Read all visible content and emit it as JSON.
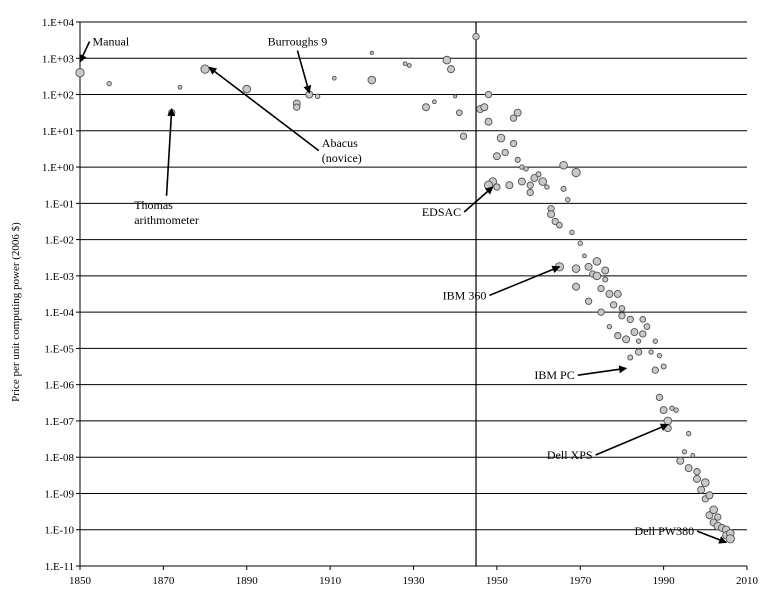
{
  "chart_data": {
    "type": "scatter",
    "title": "",
    "xlabel": "",
    "ylabel": "Price per unit computing power (2006 $)",
    "y_scale": "log",
    "xlim": [
      1850,
      2010
    ],
    "ylim_exp": [
      -11,
      4
    ],
    "x_ticks": [
      "1850",
      "1870",
      "1890",
      "1910",
      "1930",
      "1950",
      "1970",
      "1990",
      "2010"
    ],
    "y_ticks": [
      "1.E-11",
      "1.E-10",
      "1.E-09",
      "1.E-08",
      "1.E-07",
      "1.E-06",
      "1.E-05",
      "1.E-04",
      "1.E-03",
      "1.E-02",
      "1.E-01",
      "1.E+00",
      "1.E+01",
      "1.E+02",
      "1.E+03",
      "1.E+04"
    ],
    "grid": "horizontal",
    "reference_line_year": 1945,
    "colors": {
      "marker_fill": "#c8c8c8",
      "marker_stroke": "#505050",
      "grid": "#000000"
    },
    "points": [
      [
        1850,
        2.6,
        1.3
      ],
      [
        1857,
        2.3,
        0.7
      ],
      [
        1872,
        1.5,
        1.0
      ],
      [
        1874,
        2.2,
        0.6
      ],
      [
        1880,
        2.7,
        1.3
      ],
      [
        1890,
        2.15,
        1.2
      ],
      [
        1902,
        1.75,
        1.1
      ],
      [
        1902,
        1.65,
        1.0
      ],
      [
        1905,
        2.0,
        1.1
      ],
      [
        1907,
        1.95,
        0.7
      ],
      [
        1911,
        2.45,
        0.6
      ],
      [
        1920,
        3.15,
        0.5
      ],
      [
        1920,
        2.4,
        1.2
      ],
      [
        1928,
        2.85,
        0.6
      ],
      [
        1929,
        2.8,
        0.6
      ],
      [
        1933,
        1.65,
        1.1
      ],
      [
        1935,
        1.8,
        0.6
      ],
      [
        1938,
        2.95,
        1.2
      ],
      [
        1939,
        2.7,
        1.1
      ],
      [
        1940,
        1.95,
        0.5
      ],
      [
        1941,
        1.5,
        0.9
      ],
      [
        1942,
        0.85,
        1.0
      ],
      [
        1945,
        3.6,
        1.0
      ],
      [
        1946,
        1.6,
        1.1
      ],
      [
        1947,
        1.65,
        1.1
      ],
      [
        1948,
        2.0,
        1.0
      ],
      [
        1948,
        1.25,
        1.1
      ],
      [
        1949,
        -0.4,
        1.2
      ],
      [
        1950,
        -0.55,
        1.0
      ],
      [
        1950,
        0.3,
        1.1
      ],
      [
        1951,
        0.8,
        1.2
      ],
      [
        1952,
        0.4,
        1.0
      ],
      [
        1953,
        -0.5,
        1.1
      ],
      [
        1954,
        0.65,
        1.0
      ],
      [
        1954,
        1.35,
        1.0
      ],
      [
        1955,
        1.5,
        1.1
      ],
      [
        1955,
        0.2,
        0.8
      ],
      [
        1956,
        -0.4,
        1.1
      ],
      [
        1956,
        0.0,
        0.7
      ],
      [
        1957,
        -0.05,
        0.7
      ],
      [
        1958,
        -0.5,
        1.0
      ],
      [
        1958,
        -0.7,
        1.0
      ],
      [
        1959,
        -0.3,
        1.1
      ],
      [
        1960,
        -0.2,
        0.8
      ],
      [
        1961,
        -0.4,
        1.2
      ],
      [
        1962,
        -0.55,
        0.7
      ],
      [
        1963,
        -1.15,
        1.0
      ],
      [
        1963,
        -1.3,
        1.1
      ],
      [
        1964,
        -1.5,
        1.0
      ],
      [
        1965,
        -1.6,
        0.9
      ],
      [
        1966,
        0.05,
        1.2
      ],
      [
        1966,
        -0.6,
        0.8
      ],
      [
        1967,
        -0.9,
        0.7
      ],
      [
        1968,
        -1.8,
        0.7
      ],
      [
        1969,
        -2.8,
        1.2
      ],
      [
        1969,
        -3.3,
        1.1
      ],
      [
        1970,
        -2.1,
        0.7
      ],
      [
        1971,
        -2.45,
        0.6
      ],
      [
        1972,
        -2.75,
        1.1
      ],
      [
        1972,
        -3.7,
        1.0
      ],
      [
        1973,
        -2.95,
        1.0
      ],
      [
        1974,
        -2.6,
        1.2
      ],
      [
        1974,
        -3.0,
        1.2
      ],
      [
        1975,
        -3.35,
        1.0
      ],
      [
        1975,
        -4.0,
        1.0
      ],
      [
        1976,
        -2.85,
        1.1
      ],
      [
        1976,
        -3.1,
        0.8
      ],
      [
        1977,
        -4.4,
        0.7
      ],
      [
        1977,
        -3.5,
        1.1
      ],
      [
        1978,
        -3.8,
        1.0
      ],
      [
        1979,
        -3.5,
        1.1
      ],
      [
        1979,
        -4.65,
        1.0
      ],
      [
        1980,
        -4.1,
        1.0
      ],
      [
        1980,
        -3.9,
        0.9
      ],
      [
        1981,
        -4.75,
        1.1
      ],
      [
        1982,
        -4.2,
        1.0
      ],
      [
        1982,
        -5.25,
        0.8
      ],
      [
        1983,
        -4.55,
        1.1
      ],
      [
        1984,
        -5.1,
        1.0
      ],
      [
        1984,
        -4.8,
        0.7
      ],
      [
        1985,
        -4.2,
        0.9
      ],
      [
        1985,
        -4.6,
        1.0
      ],
      [
        1986,
        -4.4,
        0.9
      ],
      [
        1987,
        -5.1,
        0.7
      ],
      [
        1988,
        -4.8,
        0.7
      ],
      [
        1988,
        -5.6,
        1.0
      ],
      [
        1989,
        -5.2,
        0.7
      ],
      [
        1989,
        -6.35,
        1.0
      ],
      [
        1990,
        -6.7,
        1.1
      ],
      [
        1990,
        -5.5,
        0.8
      ],
      [
        1991,
        -7.0,
        1.2
      ],
      [
        1991,
        -7.2,
        1.1
      ],
      [
        1992,
        -6.65,
        0.7
      ],
      [
        1993,
        -6.7,
        0.7
      ],
      [
        1994,
        -8.1,
        1.1
      ],
      [
        1995,
        -7.85,
        0.7
      ],
      [
        1996,
        -8.3,
        1.1
      ],
      [
        1996,
        -7.35,
        0.7
      ],
      [
        1997,
        -7.95,
        0.6
      ],
      [
        1998,
        -8.4,
        1.0
      ],
      [
        1998,
        -8.6,
        1.1
      ],
      [
        1999,
        -8.9,
        1.1
      ],
      [
        2000,
        -8.7,
        1.2
      ],
      [
        2000,
        -9.15,
        1.0
      ],
      [
        2001,
        -9.05,
        1.1
      ],
      [
        2001,
        -9.6,
        1.1
      ],
      [
        2002,
        -9.45,
        1.2
      ],
      [
        2002,
        -9.8,
        1.1
      ],
      [
        2003,
        -9.65,
        1.0
      ],
      [
        2003,
        -9.9,
        1.2
      ],
      [
        2004,
        -9.95,
        1.1
      ],
      [
        2005,
        -10.0,
        1.2
      ],
      [
        2005,
        -10.15,
        1.1
      ],
      [
        2006,
        -10.1,
        1.2
      ],
      [
        2006,
        -10.25,
        1.3
      ],
      [
        1969,
        -0.15,
        1.3
      ],
      [
        1948,
        -0.5,
        1.3
      ],
      [
        1965,
        -2.75,
        1.3
      ]
    ],
    "annotations": [
      {
        "lines": [
          "Manual"
        ],
        "text_year": 1853,
        "text_exp": 3.35,
        "arrow_to_year": 1850,
        "arrow_to_exp": 2.9
      },
      {
        "lines": [
          "Burroughs 9"
        ],
        "text_year": 1895,
        "text_exp": 3.35,
        "arrow_to_year": 1905,
        "arrow_to_exp": 2.05
      },
      {
        "lines": [
          "Abacus",
          "(novice)"
        ],
        "text_year": 1908,
        "text_exp": 0.55,
        "arrow_to_year": 1881,
        "arrow_to_exp": 2.75
      },
      {
        "lines": [
          "Thomas",
          "arithmometer"
        ],
        "text_year": 1863,
        "text_exp": -1.15,
        "arrow_to_year": 1872,
        "arrow_to_exp": 1.6
      },
      {
        "lines": [
          "EDSAC"
        ],
        "text_year": 1932,
        "text_exp": -1.35,
        "arrow_to_year": 1949,
        "arrow_to_exp": -0.55
      },
      {
        "lines": [
          "IBM 360"
        ],
        "text_year": 1937,
        "text_exp": -3.65,
        "arrow_to_year": 1965,
        "arrow_to_exp": -2.75
      },
      {
        "lines": [
          "IBM PC"
        ],
        "text_year": 1959,
        "text_exp": -5.85,
        "arrow_to_year": 1981,
        "arrow_to_exp": -5.55
      },
      {
        "lines": [
          "Dell XPS"
        ],
        "text_year": 1962,
        "text_exp": -8.05,
        "arrow_to_year": 1991,
        "arrow_to_exp": -7.1
      },
      {
        "lines": [
          "Dell PW380"
        ],
        "text_year": 1983,
        "text_exp": -10.15,
        "arrow_to_year": 2005,
        "arrow_to_exp": -10.35
      }
    ]
  }
}
